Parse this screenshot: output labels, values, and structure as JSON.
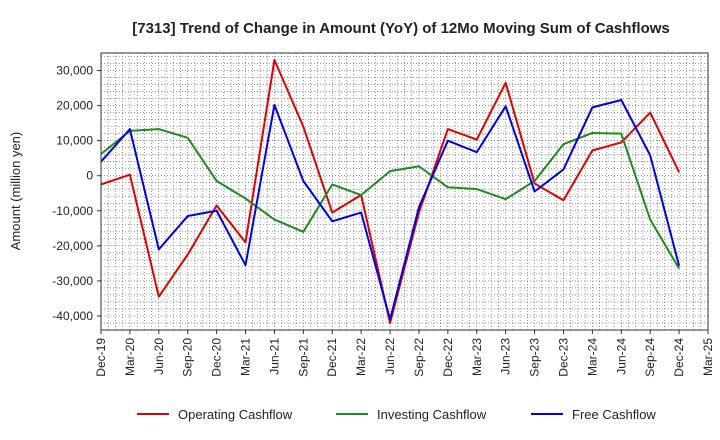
{
  "chart_data": {
    "type": "line",
    "title": "[7313]  Trend of Change in Amount (YoY) of 12Mo Moving Sum of Cashflows",
    "xlabel": "",
    "ylabel": "Amount (million yen)",
    "ylim": [
      -44000,
      35000
    ],
    "yticks": [
      30000,
      20000,
      10000,
      0,
      -10000,
      -20000,
      -30000,
      -40000
    ],
    "ytick_labels": [
      "30,000",
      "20,000",
      "10,000",
      "0",
      "-10,000",
      "-20,000",
      "-30,000",
      "-40,000"
    ],
    "grid": true,
    "legend_position": "bottom",
    "categories": [
      "Dec-19",
      "Mar-20",
      "Jun-20",
      "Sep-20",
      "Dec-20",
      "Mar-21",
      "Jun-21",
      "Sep-21",
      "Dec-21",
      "Mar-22",
      "Jun-22",
      "Sep-22",
      "Dec-22",
      "Mar-23",
      "Jun-23",
      "Sep-23",
      "Dec-23",
      "Mar-24",
      "Jun-24",
      "Sep-24",
      "Dec-24",
      "Mar-25"
    ],
    "series": [
      {
        "name": "Operating Cashflow",
        "color": "#dd0000",
        "values": [
          -2500,
          300,
          -34500,
          -22500,
          -8500,
          -19000,
          33000,
          14000,
          -10500,
          -5500,
          -42000,
          -10500,
          13300,
          10300,
          26500,
          -2200,
          -7000,
          7200,
          9500,
          18000,
          1000,
          null
        ]
      },
      {
        "name": "Investing Cashflow",
        "color": "#228822",
        "values": [
          6200,
          12800,
          13300,
          10800,
          -1500,
          -6500,
          -12500,
          -16000,
          -2500,
          -5500,
          1300,
          2700,
          -3300,
          -3800,
          -6700,
          -1500,
          9000,
          12200,
          12000,
          -12500,
          -26500,
          null
        ]
      },
      {
        "name": "Free Cashflow",
        "color": "#0000dd",
        "values": [
          4000,
          13300,
          -21000,
          -11500,
          -10000,
          -25500,
          20200,
          -1500,
          -13000,
          -10500,
          -41000,
          -9000,
          10000,
          6700,
          19800,
          -4500,
          1800,
          19500,
          21600,
          5800,
          -25700,
          null
        ]
      }
    ]
  }
}
